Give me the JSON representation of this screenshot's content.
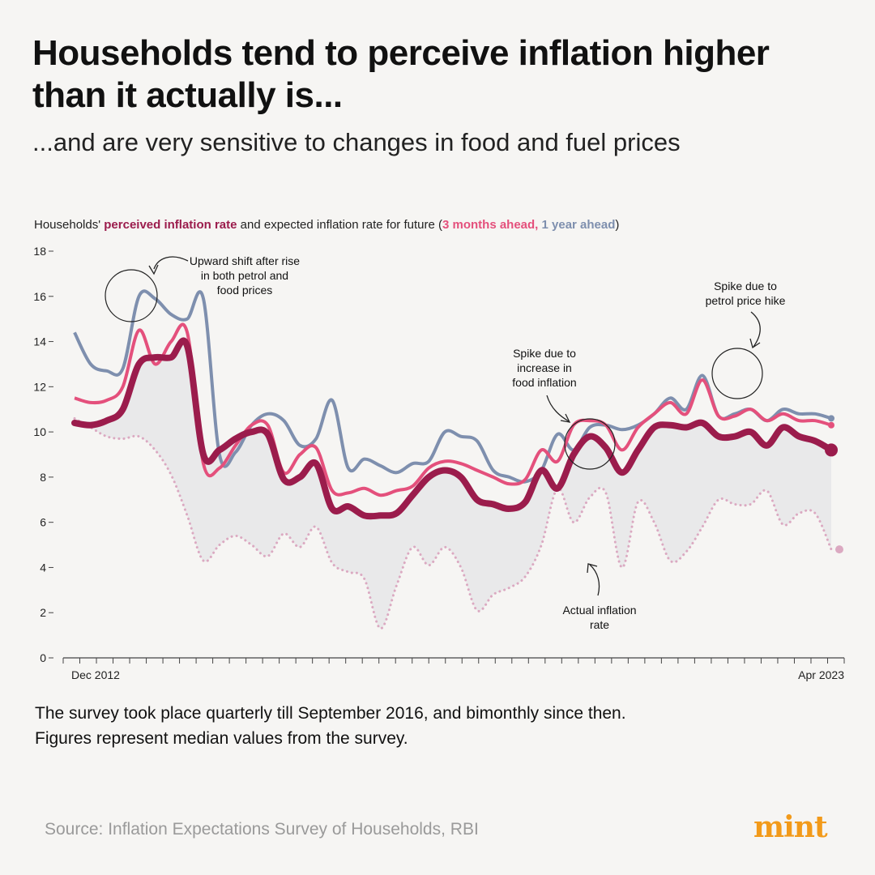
{
  "title": "Households tend to perceive inflation higher than it actually is...",
  "subtitle": "...and are very sensitive to changes in food and fuel prices",
  "chart_label": {
    "prefix": "Households'",
    "perceived": "perceived inflation rate",
    "middle": "and expected inflation rate for future (",
    "three_month": "3 months ahead,",
    "one_year": "1 year ahead",
    "suffix": ")"
  },
  "note_line1": "The survey took place quarterly till September 2016, and bimonthly since then.",
  "note_line2": "Figures represent median values from the survey.",
  "source": "Source: Inflation Expectations Survey of Households, RBI",
  "logo": "mint",
  "colors": {
    "perceived": "#9b1c4c",
    "three_month": "#e4507c",
    "one_year": "#7e8fae",
    "actual": "#dba9c1",
    "fill": "#e9e9ea",
    "axis": "#444444"
  },
  "chart_data": {
    "type": "line",
    "title": "Households' perceived inflation rate and expected inflation rate for future (3 months ahead, 1 year ahead)",
    "xlabel": "",
    "ylabel": "",
    "ylim": [
      0,
      18
    ],
    "y_ticks": [
      0,
      2,
      4,
      6,
      8,
      10,
      12,
      14,
      16,
      18
    ],
    "x_start_label": "Dec 2012",
    "x_end_label": "Apr 2023",
    "x_tick_count": 48,
    "x": [
      0,
      1,
      2,
      3,
      4,
      5,
      6,
      7,
      8,
      9,
      10,
      11,
      12,
      13,
      14,
      15,
      16,
      17,
      18,
      19,
      20,
      21,
      22,
      23,
      24,
      25,
      26,
      27,
      28,
      29,
      30,
      31,
      32,
      33,
      34,
      35,
      36,
      37,
      38,
      39,
      40,
      41,
      42,
      43,
      44,
      45,
      46,
      47
    ],
    "series": [
      {
        "name": "Perceived inflation rate",
        "values": [
          10.4,
          10.3,
          10.5,
          11.0,
          13.0,
          13.3,
          13.3,
          13.8,
          9.0,
          9.2,
          9.7,
          10.0,
          9.9,
          7.9,
          8.0,
          8.6,
          6.6,
          6.7,
          6.3,
          6.3,
          6.4,
          7.2,
          8.0,
          8.3,
          8.0,
          7.0,
          6.8,
          6.6,
          6.9,
          8.3,
          7.5,
          9.0,
          9.8,
          9.3,
          8.2,
          9.2,
          10.2,
          10.3,
          10.2,
          10.4,
          9.8,
          9.8,
          10.0,
          9.4,
          10.2,
          9.8,
          9.6,
          9.2
        ]
      },
      {
        "name": "3 months ahead",
        "values": [
          11.5,
          11.3,
          11.4,
          12.0,
          14.5,
          13.0,
          14.0,
          14.4,
          8.6,
          8.4,
          9.4,
          10.3,
          10.3,
          8.2,
          9.0,
          9.3,
          7.4,
          7.3,
          7.5,
          7.2,
          7.4,
          7.6,
          8.4,
          8.7,
          8.6,
          8.3,
          8.0,
          7.7,
          7.9,
          9.2,
          8.7,
          10.3,
          10.5,
          10.3,
          9.2,
          10.2,
          10.8,
          11.3,
          10.8,
          12.3,
          10.7,
          10.7,
          11.0,
          10.5,
          10.8,
          10.5,
          10.5,
          10.3
        ]
      },
      {
        "name": "1 year ahead",
        "values": [
          14.4,
          13.0,
          12.7,
          12.8,
          16.0,
          15.9,
          15.2,
          15.0,
          15.9,
          9.0,
          9.1,
          10.3,
          10.8,
          10.5,
          9.4,
          9.7,
          11.4,
          8.4,
          8.8,
          8.5,
          8.2,
          8.6,
          8.7,
          10.0,
          9.8,
          9.6,
          8.3,
          8.0,
          7.8,
          8.3,
          9.9,
          9.2,
          10.2,
          10.3,
          10.1,
          10.3,
          10.8,
          11.5,
          11.0,
          12.5,
          10.7,
          10.8,
          11.0,
          10.5,
          11.0,
          10.8,
          10.8,
          10.6
        ]
      },
      {
        "name": "Actual inflation rate",
        "values": [
          10.6,
          10.2,
          9.8,
          9.7,
          9.8,
          9.2,
          8.1,
          6.3,
          4.3,
          5.0,
          5.4,
          5.0,
          4.5,
          5.5,
          4.9,
          5.8,
          4.2,
          3.8,
          3.5,
          1.3,
          3.2,
          4.9,
          4.1,
          4.9,
          4.0,
          2.1,
          2.8,
          3.1,
          3.6,
          5.0,
          7.5,
          6.0,
          7.1,
          7.3,
          4.0,
          6.9,
          6.0,
          4.3,
          4.7,
          5.8,
          7.0,
          6.8,
          6.8,
          7.4,
          5.9,
          6.4,
          6.4,
          4.8
        ]
      }
    ],
    "annotations": [
      {
        "text_lines": [
          "Upward shift after rise",
          "in both petrol and",
          "food prices"
        ]
      },
      {
        "text_lines": [
          "Spike due to",
          "increase in",
          "food inflation"
        ]
      },
      {
        "text_lines": [
          "Spike due to",
          "petrol price hike"
        ]
      },
      {
        "text_lines": [
          "Actual inflation",
          "rate"
        ]
      }
    ]
  }
}
